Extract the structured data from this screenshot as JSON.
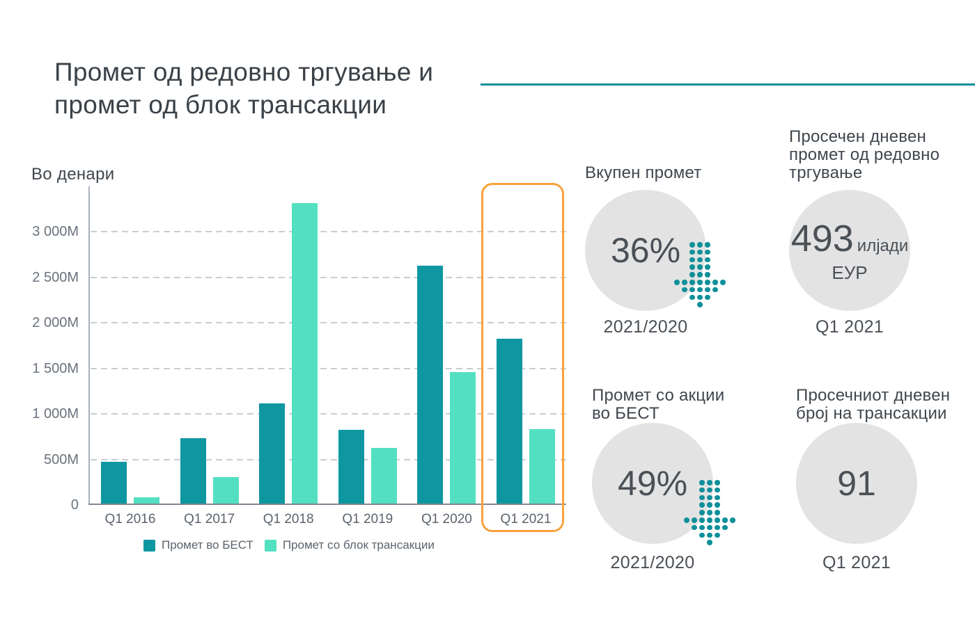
{
  "slide": {
    "title": "Промет од редовно тргување и\nпромет од блок трансакции"
  },
  "chart_data": {
    "type": "bar",
    "title": "Промет од редовно тргување и промет од блок трансакции",
    "unit_label": "Во денари",
    "categories": [
      "Q1 2016",
      "Q1 2017",
      "Q1 2018",
      "Q1 2019",
      "Q1 2020",
      "Q1 2021"
    ],
    "series": [
      {
        "name": "Промет во БЕСТ",
        "color": "#0F97A1",
        "values": [
          460,
          715,
          1100,
          810,
          2610,
          1810
        ]
      },
      {
        "name": "Промет со блок трансакции",
        "color": "#53E0C1",
        "values": [
          65,
          290,
          3300,
          610,
          1440,
          820
        ]
      }
    ],
    "y_ticks": [
      0,
      500,
      1000,
      1500,
      2000,
      2500,
      3000
    ],
    "y_tick_labels": [
      "0",
      "500M",
      "1 000M",
      "1 500M",
      "2 000M",
      "2 500M",
      "3 000M"
    ],
    "ylim": [
      0,
      3500
    ],
    "values_unit": "millions of denars",
    "grid": "horizontal-dashed",
    "legend_position": "bottom",
    "highlighted_category": "Q1 2021"
  },
  "stats": [
    {
      "heading": "Вкупен промет",
      "value": "36%",
      "caption": "2021/2020",
      "arrow": "down"
    },
    {
      "heading": "Просечен дневен\nпромет од редовно\nтргување",
      "value": "493",
      "value_unit": "илјади",
      "value_unit2": "ЕУР",
      "caption": "Q1 2021"
    },
    {
      "heading": "Промет со акции\nво БЕСТ",
      "value": "49%",
      "caption": "2021/2020",
      "arrow": "down"
    },
    {
      "heading": "Просечниот дневен\nброј на трансакции",
      "value": "91",
      "caption": "Q1 2021"
    }
  ],
  "colors": {
    "teal_dark": "#0F97A1",
    "mint": "#53E0C1",
    "divider_teal": "#0E909A",
    "arrow_teal": "#0E909A",
    "highlight_orange": "#F8A23B",
    "circle_gray": "#E3E3E4",
    "title_text": "#3A4148",
    "body_text": "#4A5056"
  }
}
